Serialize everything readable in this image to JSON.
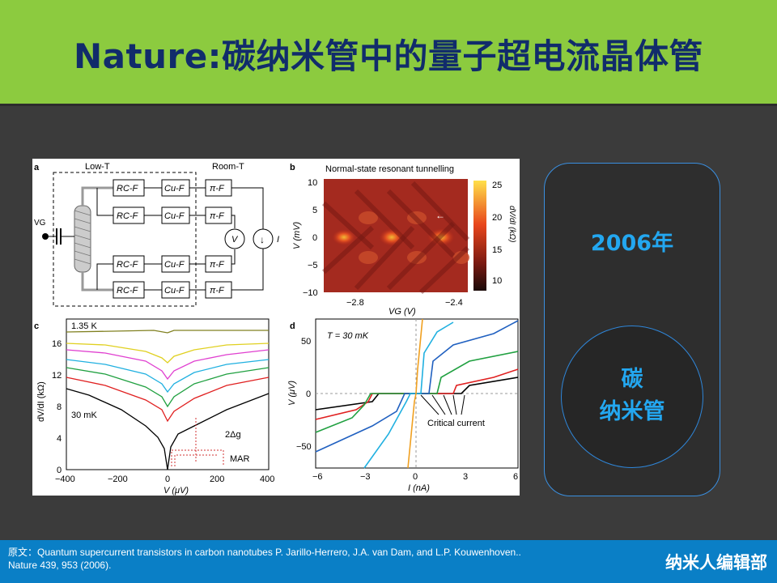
{
  "title": "Nature:碳纳米管中的量子超电流晶体管",
  "card": {
    "year": "2006年",
    "line1": "碳",
    "line2": "纳米管"
  },
  "footer": {
    "citation_line1": "原文：Quantum supercurrent transistors in carbon nanotubes P. Jarillo-Herrero, J.A. van Dam, and L.P. Kouwenhoven..",
    "citation_line2": "Nature 439, 953 (2006).",
    "brand": "纳米人编辑部"
  },
  "colors": {
    "header": "#8ccb3f",
    "title": "#112c6b",
    "accent": "#23a7f0",
    "footer": "#0a7fc6",
    "background": "#3b3b3b"
  },
  "figure": {
    "panel_a": {
      "label": "a",
      "low_t": "Low-T",
      "room_t": "Room-T",
      "vg": "VG",
      "filters": [
        "RC-F",
        "Cu-F",
        "π-F"
      ],
      "meter_v": "V",
      "source_i": "I"
    },
    "panel_b": {
      "label": "b",
      "title": "Normal-state resonant tunnelling",
      "xlabel": "VG (V)",
      "ylabel": "V (mV)",
      "xticks": [
        "−2.8",
        "−2.4"
      ],
      "yticks": [
        "10",
        "5",
        "0",
        "−5",
        "−10"
      ],
      "colorbar_label": "dV/dI (kΩ)",
      "colorbar_ticks": [
        "25",
        "20",
        "15",
        "10"
      ]
    },
    "panel_c": {
      "label": "c",
      "temp_high": "1.35 K",
      "temp_low": "30 mK",
      "ylabel": "dV/dI (kΩ)",
      "xlabel": "V (μV)",
      "xticks": [
        "−400",
        "−200",
        "0",
        "200",
        "400"
      ],
      "yticks": [
        "16",
        "12",
        "8",
        "4",
        "0"
      ],
      "gap_label": "2Δg",
      "mar_label": "MAR"
    },
    "panel_d": {
      "label": "d",
      "temp": "T = 30 mK",
      "ylabel": "V (μV)",
      "xlabel": "I (nA)",
      "xticks": [
        "−6",
        "−3",
        "0",
        "3",
        "6"
      ],
      "yticks": [
        "50",
        "0",
        "−50"
      ],
      "annotation": "Critical current"
    }
  }
}
